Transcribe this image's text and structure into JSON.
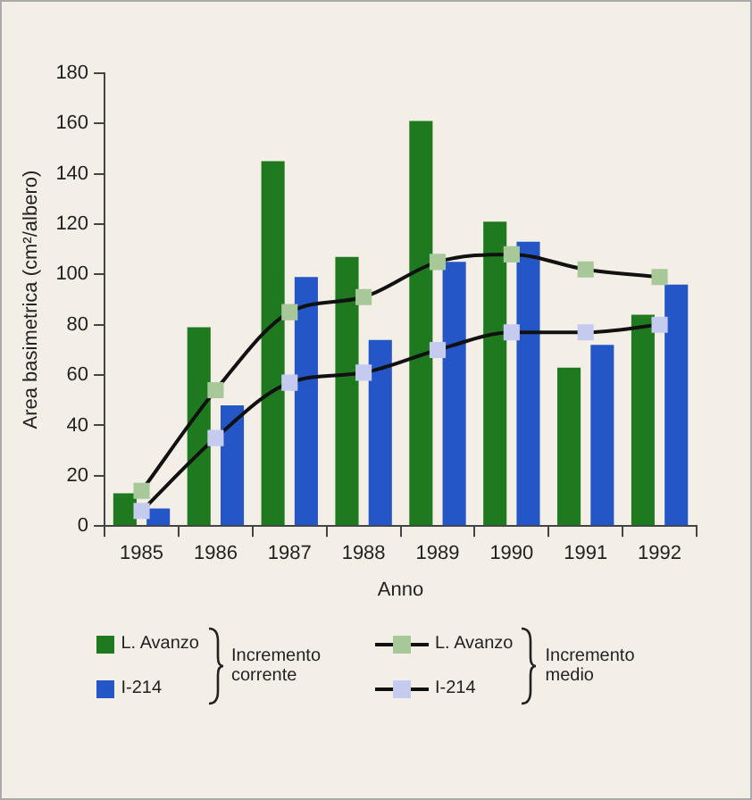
{
  "chart_data": {
    "type": "bar",
    "xlabel": "Anno",
    "ylabel": "Area basimetrica (cm²/albero)",
    "categories": [
      "1985",
      "1986",
      "1987",
      "1988",
      "1989",
      "1990",
      "1991",
      "1992"
    ],
    "series": [
      {
        "name": "L. Avanzo",
        "color": "#1f7a1f",
        "values": [
          13,
          79,
          145,
          107,
          161,
          121,
          63,
          84
        ]
      },
      {
        "name": "I-214",
        "color": "#2456c8",
        "values": [
          7,
          48,
          99,
          74,
          105,
          113,
          72,
          96
        ]
      },
      {
        "name": "L. Avanzo",
        "type": "line",
        "color": "#a8c89a",
        "values": [
          14,
          54,
          85,
          91,
          105,
          108,
          102,
          99
        ]
      },
      {
        "name": "I-214",
        "type": "line",
        "color": "#c4cbee",
        "values": [
          6,
          35,
          57,
          61,
          70,
          77,
          77,
          80
        ]
      }
    ],
    "ylim": [
      0,
      180
    ],
    "yticks": [
      0,
      20,
      40,
      60,
      80,
      100,
      120,
      140,
      160,
      180
    ],
    "grid": false,
    "marker": "square",
    "legend": "bottom",
    "annotations": [
      "Incremento corrente",
      "Incremento medio"
    ]
  }
}
